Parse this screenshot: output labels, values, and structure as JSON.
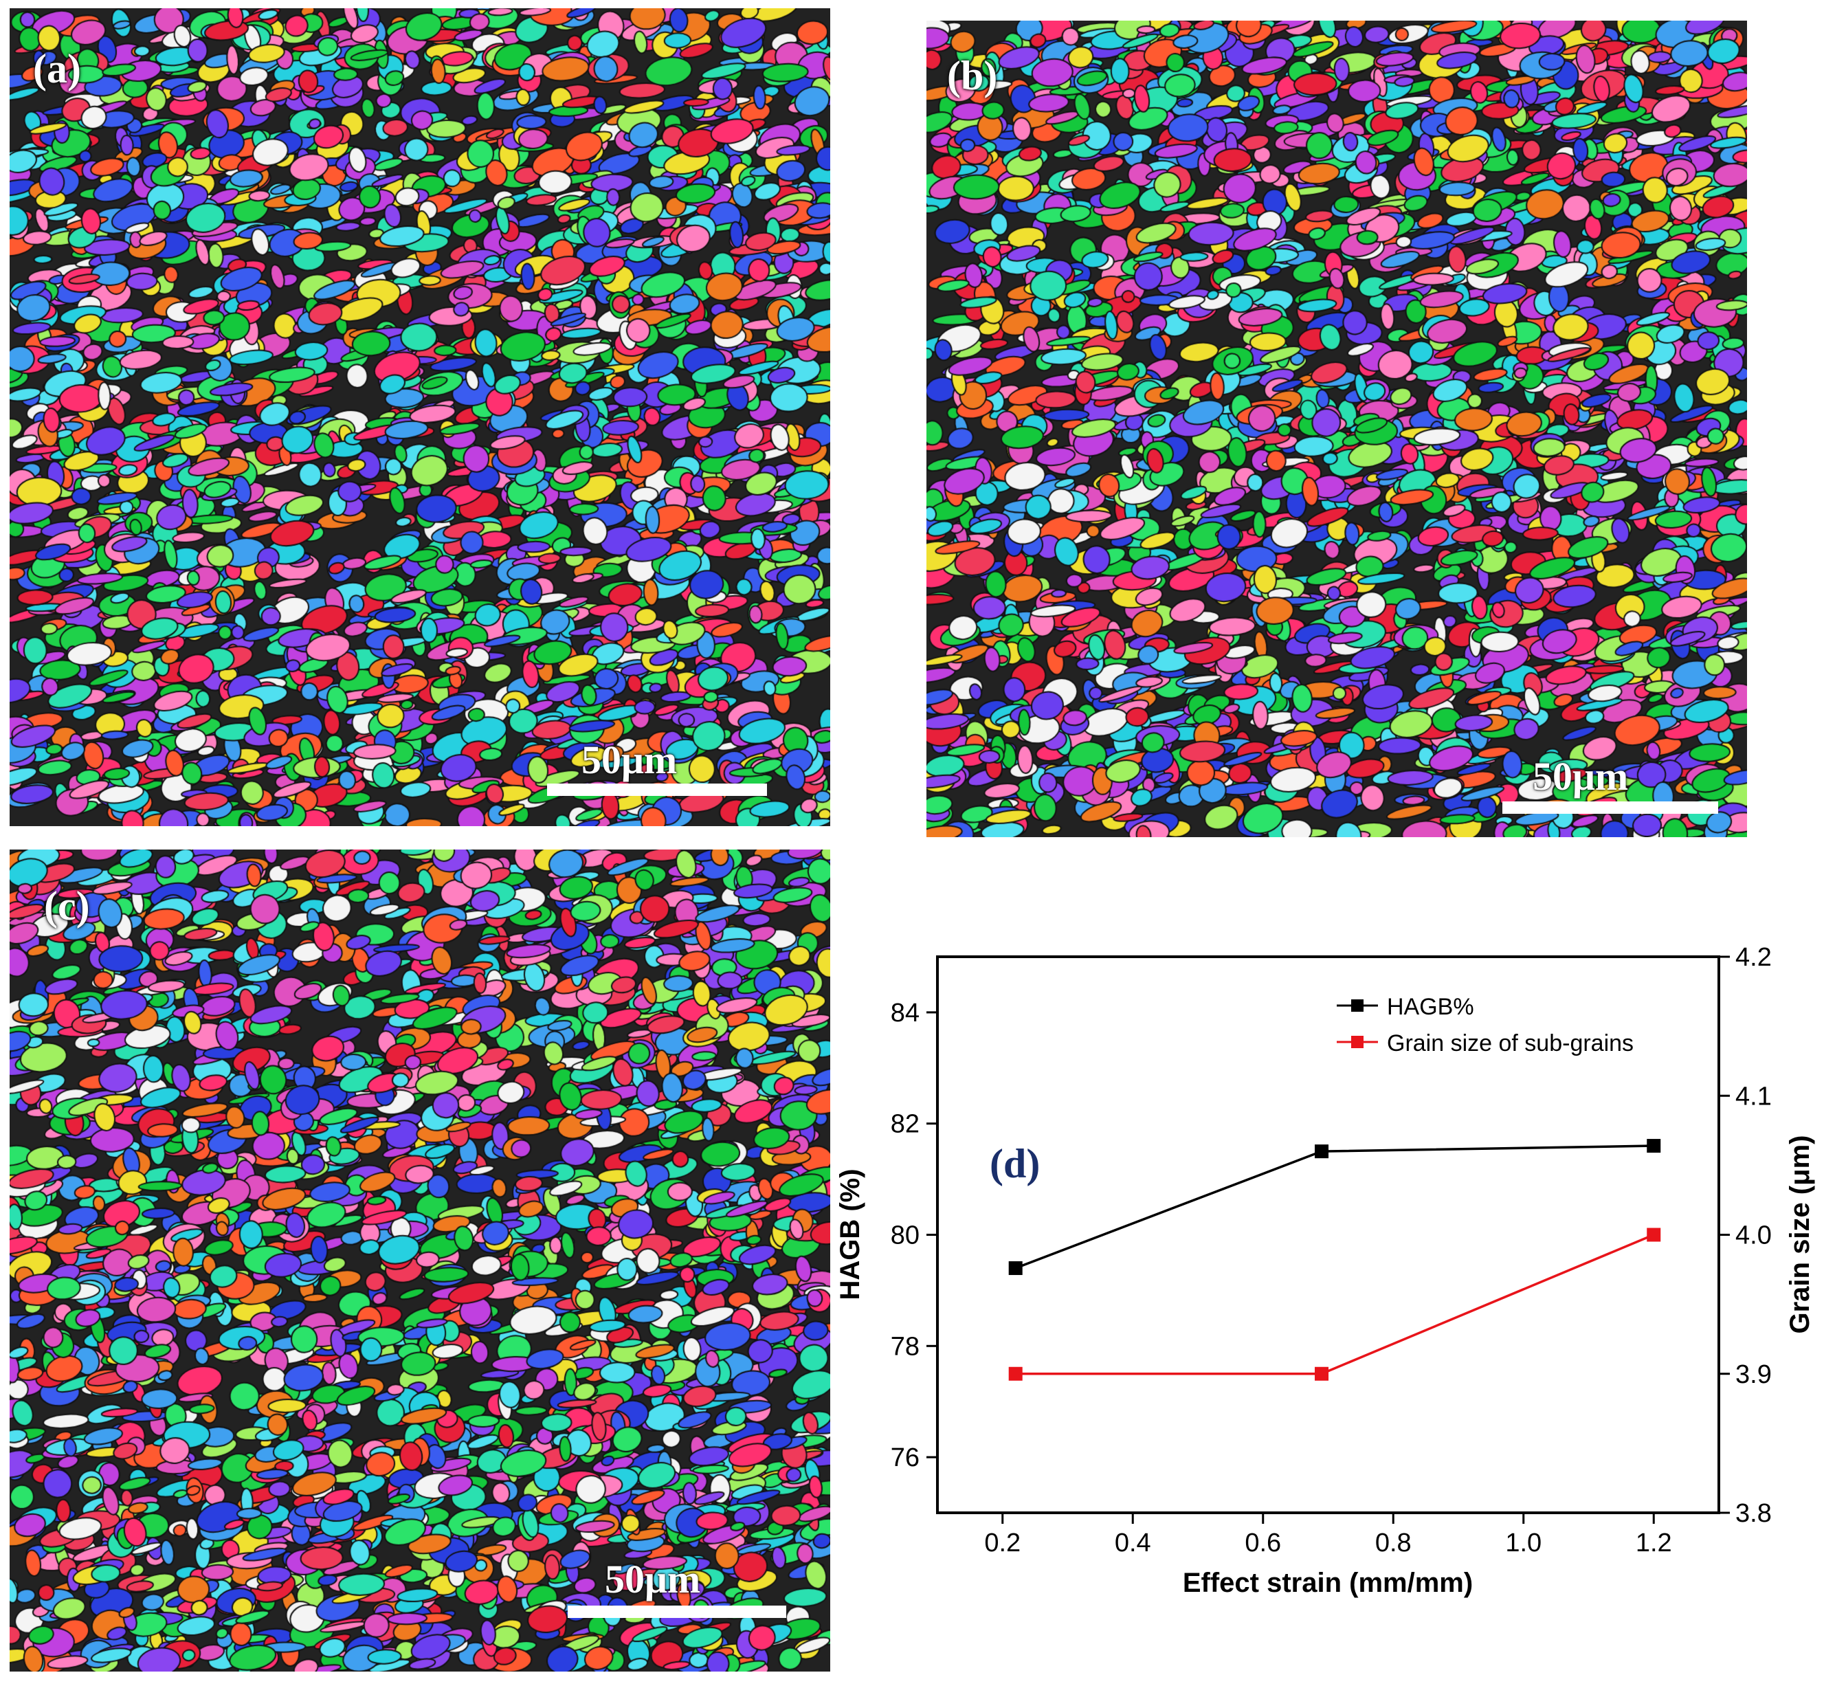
{
  "panels": [
    {
      "id": "a",
      "label": "(a)",
      "scale_label": "50μm"
    },
    {
      "id": "b",
      "label": "(b)",
      "scale_label": "50μm"
    },
    {
      "id": "c",
      "label": "(c)",
      "scale_label": "50μm"
    }
  ],
  "chart_data": {
    "type": "line",
    "panel_label": "(d)",
    "xlabel": "Effect strain (mm/mm)",
    "ylabel_left": "HAGB (%)",
    "ylabel_right": "Grain size (μm)",
    "xlim": [
      0.1,
      1.3
    ],
    "ylim_left": [
      75,
      85
    ],
    "ylim_right": [
      3.8,
      4.2
    ],
    "x_ticks": [
      "0.2",
      "0.4",
      "0.6",
      "0.8",
      "1.0",
      "1.2"
    ],
    "y_ticks_left": [
      "76",
      "78",
      "80",
      "82",
      "84"
    ],
    "y_ticks_right": [
      "3.8",
      "3.9",
      "4.0",
      "4.1",
      "4.2"
    ],
    "legend_position": "top-right",
    "series": [
      {
        "name": "HAGB%",
        "color": "#000000",
        "axis": "left",
        "x": [
          0.22,
          0.69,
          1.2
        ],
        "values": [
          79.4,
          81.5,
          81.6
        ]
      },
      {
        "name": "Grain size of sub-grains",
        "color": "#e8141a",
        "axis": "right",
        "x": [
          0.22,
          0.69,
          1.2
        ],
        "values": [
          3.9,
          3.9,
          4.0
        ]
      }
    ]
  }
}
